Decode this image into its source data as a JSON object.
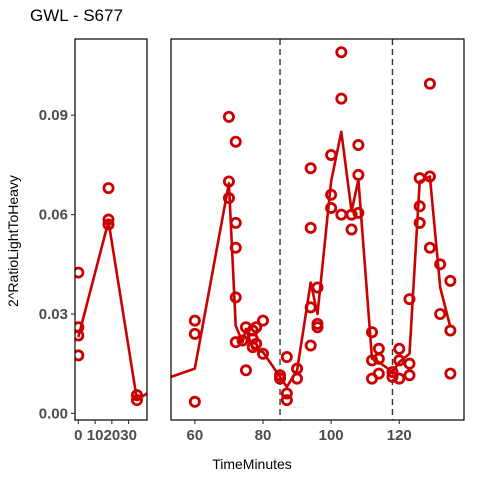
{
  "chart_data": {
    "type": "scatter",
    "title": "GWL - S677",
    "xlabel": "TimeMinutes",
    "ylabel": "2^RatioLightToHeavy",
    "colors": {
      "series": "#cc0000",
      "vline": "#333333",
      "axis": "#000000"
    },
    "y_ticks": [
      {
        "value": 0.0,
        "label": "0.00"
      },
      {
        "value": 0.03,
        "label": "0.03"
      },
      {
        "value": 0.06,
        "label": "0.06"
      },
      {
        "value": 0.09,
        "label": "0.09"
      }
    ],
    "ylim": [
      -0.002,
      0.113
    ],
    "vlines": [
      85,
      118
    ],
    "grid": false,
    "panels": [
      {
        "xlim": [
          -2,
          41
        ],
        "x_ticks": [
          {
            "value": 0,
            "label": "0"
          },
          {
            "value": 10,
            "label": "10"
          },
          {
            "value": 20,
            "label": "20"
          },
          {
            "value": 30,
            "label": "30"
          }
        ],
        "points": [
          [
            0,
            0.0425
          ],
          [
            0,
            0.026
          ],
          [
            0,
            0.0235
          ],
          [
            0,
            0.0175
          ],
          [
            18,
            0.068
          ],
          [
            18,
            0.0585
          ],
          [
            18,
            0.057
          ],
          [
            35,
            0.0055
          ],
          [
            35,
            0.004
          ]
        ],
        "line": [
          [
            0,
            0.023
          ],
          [
            18,
            0.058
          ],
          [
            35,
            0.004
          ],
          [
            41,
            0.006
          ]
        ]
      },
      {
        "xlim": [
          53,
          139
        ],
        "x_ticks": [
          {
            "value": 60,
            "label": "60"
          },
          {
            "value": 80,
            "label": "80"
          },
          {
            "value": 100,
            "label": "100"
          },
          {
            "value": 120,
            "label": "120"
          }
        ],
        "points": [
          [
            60,
            0.028
          ],
          [
            60,
            0.024
          ],
          [
            60,
            0.0035
          ],
          [
            70,
            0.0895
          ],
          [
            70,
            0.07
          ],
          [
            70,
            0.065
          ],
          [
            72,
            0.082
          ],
          [
            72,
            0.0575
          ],
          [
            72,
            0.05
          ],
          [
            72,
            0.035
          ],
          [
            72,
            0.0215
          ],
          [
            74,
            0.022
          ],
          [
            75,
            0.026
          ],
          [
            75,
            0.013
          ],
          [
            77,
            0.025
          ],
          [
            77,
            0.0225
          ],
          [
            77,
            0.02
          ],
          [
            78,
            0.026
          ],
          [
            78,
            0.021
          ],
          [
            80,
            0.028
          ],
          [
            80,
            0.018
          ],
          [
            85,
            0.0115
          ],
          [
            85,
            0.0105
          ],
          [
            87,
            0.017
          ],
          [
            87,
            0.006
          ],
          [
            87,
            0.004
          ],
          [
            90,
            0.0135
          ],
          [
            90,
            0.0105
          ],
          [
            94,
            0.074
          ],
          [
            94,
            0.056
          ],
          [
            94,
            0.032
          ],
          [
            94,
            0.0205
          ],
          [
            96,
            0.038
          ],
          [
            96,
            0.027
          ],
          [
            96,
            0.026
          ],
          [
            100,
            0.078
          ],
          [
            100,
            0.066
          ],
          [
            100,
            0.062
          ],
          [
            103,
            0.109
          ],
          [
            103,
            0.095
          ],
          [
            103,
            0.06
          ],
          [
            106,
            0.0555
          ],
          [
            106,
            0.06
          ],
          [
            108,
            0.081
          ],
          [
            108,
            0.072
          ],
          [
            108,
            0.0605
          ],
          [
            112,
            0.0245
          ],
          [
            112,
            0.016
          ],
          [
            112,
            0.0105
          ],
          [
            114,
            0.0195
          ],
          [
            114,
            0.0165
          ],
          [
            114,
            0.012
          ],
          [
            118,
            0.0125
          ],
          [
            118,
            0.011
          ],
          [
            120,
            0.0195
          ],
          [
            120,
            0.016
          ],
          [
            120,
            0.0105
          ],
          [
            123,
            0.0345
          ],
          [
            123,
            0.015
          ],
          [
            123,
            0.0115
          ],
          [
            126,
            0.071
          ],
          [
            126,
            0.0625
          ],
          [
            126,
            0.0575
          ],
          [
            129,
            0.0995
          ],
          [
            129,
            0.0715
          ],
          [
            129,
            0.05
          ],
          [
            132,
            0.045
          ],
          [
            132,
            0.03
          ],
          [
            135,
            0.04
          ],
          [
            135,
            0.025
          ],
          [
            135,
            0.012
          ]
        ],
        "line": [
          [
            53,
            0.011
          ],
          [
            60,
            0.0135
          ],
          [
            70,
            0.0695
          ],
          [
            72,
            0.0265
          ],
          [
            74,
            0.0215
          ],
          [
            75,
            0.0255
          ],
          [
            77,
            0.0195
          ],
          [
            80,
            0.0185
          ],
          [
            85,
            0.011
          ],
          [
            87,
            0.008
          ],
          [
            90,
            0.013
          ],
          [
            94,
            0.0395
          ],
          [
            96,
            0.03
          ],
          [
            100,
            0.07
          ],
          [
            103,
            0.085
          ],
          [
            106,
            0.061
          ],
          [
            108,
            0.0705
          ],
          [
            112,
            0.0165
          ],
          [
            114,
            0.0155
          ],
          [
            118,
            0.0125
          ],
          [
            120,
            0.0155
          ],
          [
            123,
            0.018
          ],
          [
            126,
            0.07
          ],
          [
            129,
            0.0715
          ],
          [
            132,
            0.038
          ],
          [
            135,
            0.026
          ]
        ]
      }
    ]
  }
}
